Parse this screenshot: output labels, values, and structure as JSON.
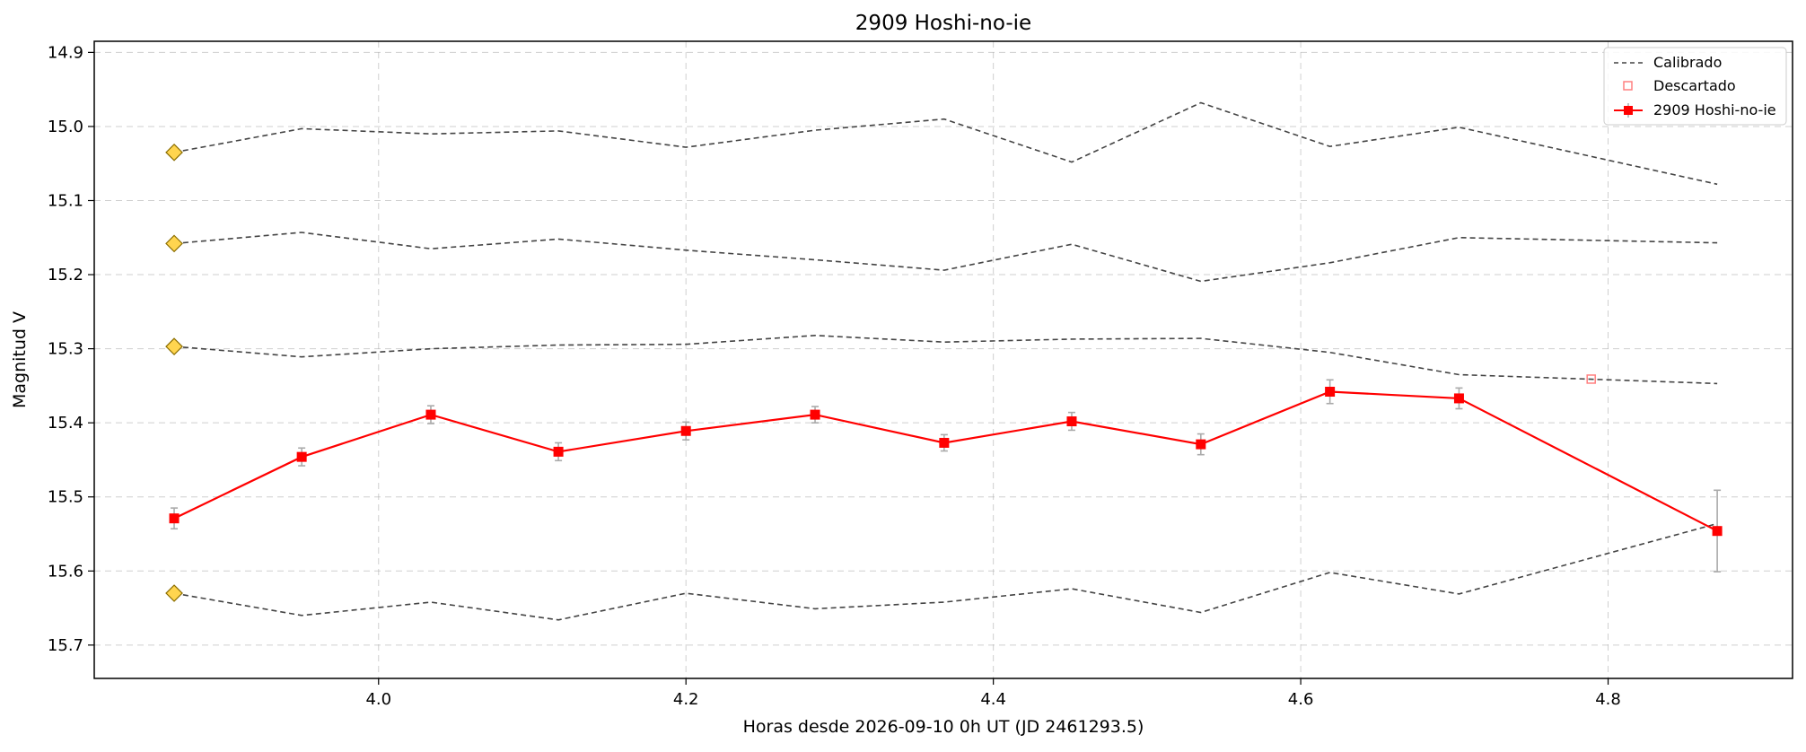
{
  "chart_data": {
    "type": "line",
    "title": "2909 Hoshi-no-ie",
    "xlabel": "Horas desde 2026-09-10 0h UT (JD 2461293.5)",
    "ylabel": "Magnitud V",
    "xlim": [
      3.815,
      4.92
    ],
    "ylim": [
      15.745,
      14.885
    ],
    "y_inverted": true,
    "grid": true,
    "legend_position": "top-right",
    "xticks": [
      "4.0",
      "4.2",
      "4.4",
      "4.6",
      "4.8"
    ],
    "xtick_values": [
      4.0,
      4.2,
      4.4,
      4.6,
      4.8
    ],
    "yticks": [
      "14.9",
      "15.0",
      "15.1",
      "15.2",
      "15.3",
      "15.4",
      "15.5",
      "15.6",
      "15.7"
    ],
    "ytick_values": [
      14.9,
      15.0,
      15.1,
      15.2,
      15.3,
      15.4,
      15.5,
      15.6,
      15.7
    ],
    "legend": {
      "calibrated": "Calibrado",
      "discarded": "Descartado",
      "target": "2909 Hoshi-no-ie"
    },
    "colors": {
      "target": "#ff0000",
      "comparison": "#444444",
      "discarded": "#ff8080",
      "errorbar": "#aaaaaa",
      "marker_reference": "#ffd54f",
      "marker_reference_edge": "#8a6d00"
    },
    "comparison_series": [
      {
        "x": [
          3.867,
          3.95,
          4.034,
          4.117,
          4.2,
          4.284,
          4.368,
          4.451,
          4.535,
          4.619,
          4.703,
          4.871
        ],
        "y": [
          15.035,
          15.003,
          15.01,
          15.006,
          15.028,
          15.005,
          14.99,
          15.048,
          14.968,
          15.027,
          15.001,
          15.078
        ]
      },
      {
        "x": [
          3.867,
          3.95,
          4.034,
          4.117,
          4.2,
          4.284,
          4.368,
          4.451,
          4.535,
          4.619,
          4.703,
          4.871
        ],
        "y": [
          15.158,
          15.143,
          15.165,
          15.152,
          15.167,
          15.18,
          15.194,
          15.159,
          15.209,
          15.184,
          15.15,
          15.157
        ]
      },
      {
        "x": [
          3.867,
          3.95,
          4.034,
          4.117,
          4.2,
          4.284,
          4.368,
          4.451,
          4.535,
          4.619,
          4.703,
          4.871
        ],
        "y": [
          15.297,
          15.311,
          15.3,
          15.295,
          15.294,
          15.282,
          15.291,
          15.287,
          15.286,
          15.305,
          15.335,
          15.347
        ]
      },
      {
        "x": [
          3.867,
          3.95,
          4.034,
          4.117,
          4.2,
          4.284,
          4.368,
          4.451,
          4.535,
          4.619,
          4.703,
          4.871
        ],
        "y": [
          15.63,
          15.66,
          15.642,
          15.666,
          15.63,
          15.651,
          15.642,
          15.624,
          15.656,
          15.602,
          15.631,
          15.536
        ]
      }
    ],
    "reference_markers": {
      "x": [
        3.867,
        3.867,
        3.867,
        3.867
      ],
      "y": [
        15.035,
        15.158,
        15.297,
        15.63
      ]
    },
    "target_series": {
      "name": "2909 Hoshi-no-ie",
      "x": [
        3.867,
        3.95,
        4.034,
        4.117,
        4.2,
        4.284,
        4.368,
        4.451,
        4.535,
        4.619,
        4.703,
        4.871
      ],
      "y": [
        15.529,
        15.446,
        15.389,
        15.439,
        15.411,
        15.389,
        15.427,
        15.398,
        15.429,
        15.358,
        15.367,
        15.546
      ],
      "err": [
        0.014,
        0.012,
        0.012,
        0.012,
        0.012,
        0.011,
        0.011,
        0.012,
        0.014,
        0.016,
        0.014,
        0.055
      ]
    },
    "discarded_points": {
      "x": [
        4.789
      ],
      "y": [
        15.341
      ]
    }
  }
}
